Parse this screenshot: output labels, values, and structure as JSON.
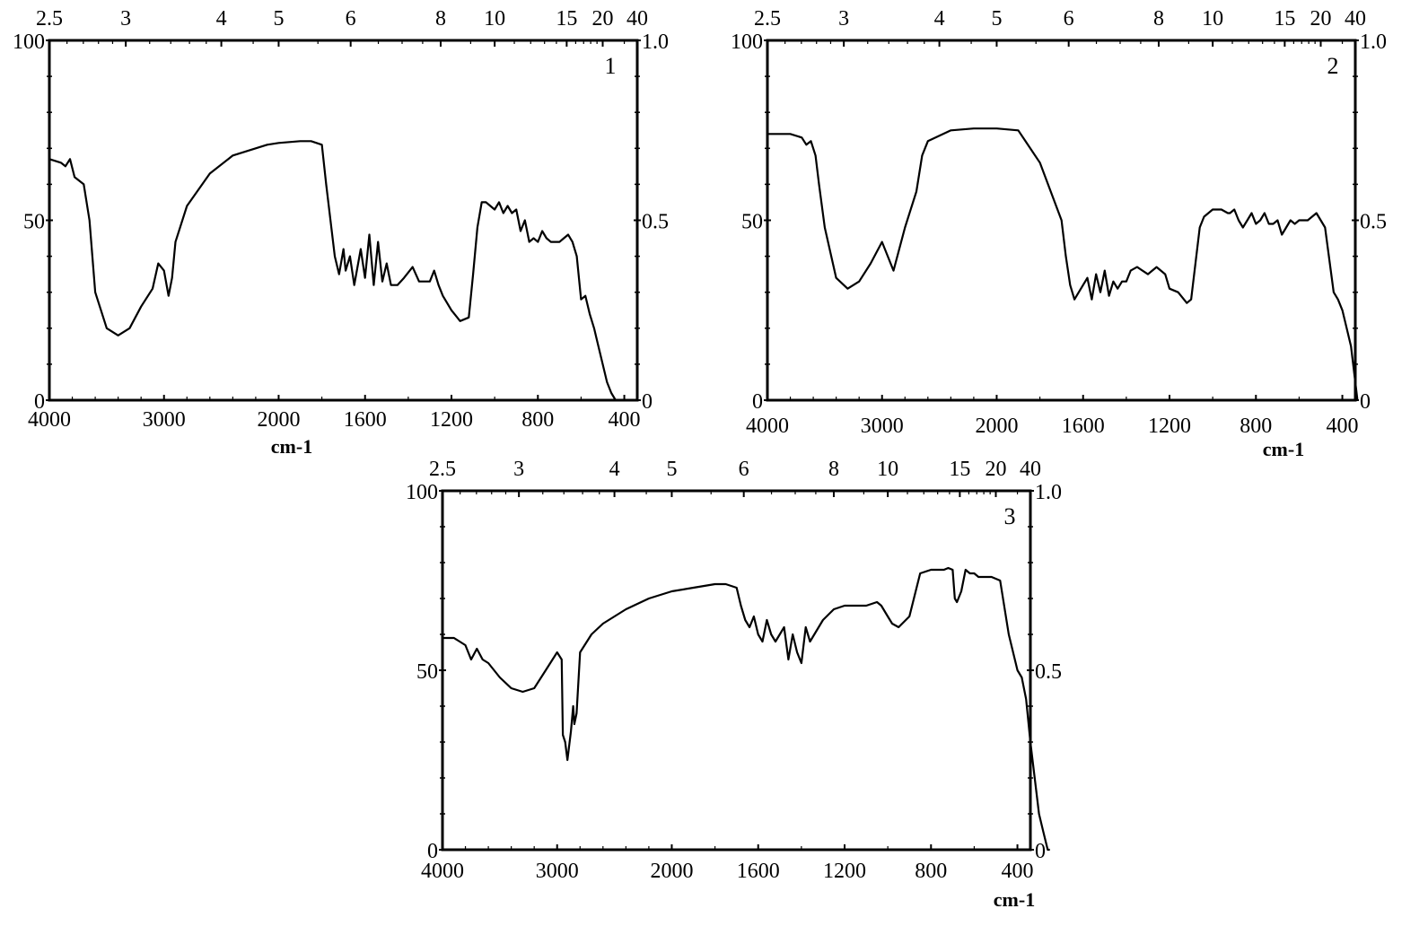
{
  "chart_data": [
    {
      "type": "line",
      "panel_label": "1",
      "xlabel": "cm-1",
      "x_ticks": [
        "4000",
        "3000",
        "2000",
        "1600",
        "1200",
        "800",
        "400"
      ],
      "x_tick_values": [
        4000,
        3000,
        2000,
        1600,
        1200,
        800,
        400
      ],
      "top_ticks": [
        "2.5",
        "3",
        "4",
        "5",
        "6",
        "8",
        "10",
        "15",
        "20",
        "40"
      ],
      "top_tick_values": [
        2.5,
        3,
        4,
        5,
        6,
        8,
        10,
        15,
        20,
        40
      ],
      "y_left_ticks": [
        "0",
        "50",
        "100"
      ],
      "y_left_tick_values": [
        0,
        50,
        100
      ],
      "y_right_ticks": [
        "0",
        "0.5",
        "1.0"
      ],
      "y_right_tick_values": [
        0,
        0.5,
        1.0
      ],
      "ylim": [
        0,
        100
      ],
      "grid": false,
      "series": [
        {
          "x": [
            4000,
            3900,
            3860,
            3820,
            3780,
            3700,
            3650,
            3600,
            3500,
            3400,
            3300,
            3200,
            3100,
            3050,
            3000,
            2960,
            2930,
            2900,
            2800,
            2600,
            2400,
            2200,
            2100,
            2000,
            1900,
            1850,
            1800,
            1780,
            1760,
            1740,
            1720,
            1700,
            1690,
            1670,
            1650,
            1620,
            1600,
            1580,
            1560,
            1540,
            1520,
            1500,
            1480,
            1450,
            1420,
            1380,
            1350,
            1300,
            1280,
            1260,
            1240,
            1200,
            1160,
            1120,
            1100,
            1080,
            1060,
            1040,
            1020,
            1000,
            980,
            960,
            940,
            920,
            900,
            880,
            860,
            840,
            820,
            800,
            780,
            760,
            740,
            720,
            700,
            680,
            660,
            640,
            620,
            600,
            580,
            560,
            540,
            520,
            500,
            480,
            460,
            440,
            430,
            420,
            410
          ],
          "y": [
            67,
            66,
            65,
            67,
            62,
            60,
            50,
            30,
            20,
            18,
            20,
            26,
            31,
            38,
            36,
            29,
            34,
            44,
            54,
            63,
            68,
            70,
            71,
            71.5,
            72,
            72,
            71,
            60,
            50,
            40,
            35,
            42,
            36,
            40,
            32,
            42,
            34,
            46,
            32,
            44,
            33,
            38,
            32,
            32,
            34,
            37,
            33,
            33,
            36,
            32,
            29,
            25,
            22,
            23,
            35,
            48,
            55,
            55,
            54,
            53,
            55,
            52,
            54,
            52,
            53,
            47,
            50,
            44,
            45,
            44,
            47,
            45,
            44,
            44,
            44,
            45,
            46,
            44,
            40,
            28,
            29,
            24,
            20,
            15,
            10,
            5,
            2,
            0,
            0,
            0,
            0
          ]
        }
      ]
    },
    {
      "type": "line",
      "panel_label": "2",
      "xlabel": "cm-1",
      "x_ticks": [
        "4000",
        "3000",
        "2000",
        "1600",
        "1200",
        "800",
        "400"
      ],
      "x_tick_values": [
        4000,
        3000,
        2000,
        1600,
        1200,
        800,
        400
      ],
      "top_ticks": [
        "2.5",
        "3",
        "4",
        "5",
        "6",
        "8",
        "10",
        "15",
        "20",
        "40"
      ],
      "top_tick_values": [
        2.5,
        3,
        4,
        5,
        6,
        8,
        10,
        15,
        20,
        40
      ],
      "y_left_ticks": [
        "0",
        "50",
        "100"
      ],
      "y_left_tick_values": [
        0,
        50,
        100
      ],
      "y_right_ticks": [
        "0",
        "0.5",
        "1.0"
      ],
      "y_right_tick_values": [
        0,
        0.5,
        1.0
      ],
      "ylim": [
        0,
        100
      ],
      "grid": false,
      "series": [
        {
          "x": [
            4000,
            3800,
            3700,
            3660,
            3620,
            3580,
            3550,
            3500,
            3400,
            3300,
            3200,
            3100,
            3000,
            2900,
            2800,
            2700,
            2650,
            2600,
            2400,
            2200,
            2000,
            1900,
            1800,
            1700,
            1680,
            1660,
            1640,
            1620,
            1600,
            1580,
            1560,
            1540,
            1520,
            1500,
            1480,
            1460,
            1440,
            1420,
            1400,
            1380,
            1350,
            1300,
            1260,
            1220,
            1200,
            1160,
            1120,
            1100,
            1080,
            1060,
            1040,
            1000,
            960,
            930,
            920,
            900,
            880,
            860,
            840,
            820,
            800,
            780,
            760,
            740,
            720,
            700,
            680,
            660,
            640,
            620,
            600,
            560,
            520,
            480,
            440,
            420,
            400,
            380,
            360,
            340,
            330
          ],
          "y": [
            74,
            74,
            73,
            71,
            72,
            68,
            60,
            48,
            34,
            31,
            33,
            38,
            44,
            36,
            48,
            58,
            68,
            72,
            75,
            75.5,
            75.5,
            75,
            66,
            50,
            40,
            32,
            28,
            30,
            32,
            34,
            28,
            35,
            30,
            36,
            29,
            33,
            31,
            33,
            33,
            36,
            37,
            35,
            37,
            35,
            31,
            30,
            27,
            28,
            38,
            48,
            51,
            53,
            53,
            52,
            52,
            53,
            50,
            48,
            50,
            52,
            49,
            50,
            52,
            49,
            49,
            50,
            46,
            48,
            50,
            49,
            50,
            50,
            52,
            48,
            30,
            28,
            25,
            20,
            15,
            5,
            0
          ]
        }
      ]
    },
    {
      "type": "line",
      "panel_label": "3",
      "xlabel": "cm-1",
      "x_ticks": [
        "4000",
        "3000",
        "2000",
        "1600",
        "1200",
        "800",
        "400"
      ],
      "x_tick_values": [
        4000,
        3000,
        2000,
        1600,
        1200,
        800,
        400
      ],
      "top_ticks": [
        "2.5",
        "3",
        "4",
        "5",
        "6",
        "8",
        "10",
        "15",
        "20",
        "40"
      ],
      "top_tick_values": [
        2.5,
        3,
        4,
        5,
        6,
        8,
        10,
        15,
        20,
        40
      ],
      "y_left_ticks": [
        "0",
        "50",
        "100"
      ],
      "y_left_tick_values": [
        0,
        50,
        100
      ],
      "y_right_ticks": [
        "0",
        "0.5",
        "1.0"
      ],
      "y_right_tick_values": [
        0,
        0.5,
        1.0
      ],
      "ylim": [
        0,
        100
      ],
      "grid": false,
      "series": [
        {
          "x": [
            4000,
            3900,
            3800,
            3750,
            3700,
            3650,
            3600,
            3500,
            3400,
            3300,
            3200,
            3100,
            3000,
            2960,
            2950,
            2930,
            2910,
            2880,
            2860,
            2850,
            2830,
            2800,
            2700,
            2600,
            2500,
            2400,
            2200,
            2000,
            1900,
            1800,
            1750,
            1700,
            1680,
            1660,
            1640,
            1620,
            1600,
            1580,
            1560,
            1540,
            1520,
            1500,
            1480,
            1460,
            1440,
            1420,
            1400,
            1380,
            1360,
            1340,
            1300,
            1250,
            1200,
            1150,
            1100,
            1050,
            1030,
            1000,
            980,
            950,
            900,
            850,
            800,
            760,
            740,
            720,
            700,
            690,
            680,
            660,
            640,
            620,
            600,
            580,
            560,
            520,
            480,
            440,
            400,
            380,
            360,
            340,
            320,
            300,
            280,
            260,
            250
          ],
          "y": [
            59,
            59,
            57,
            53,
            56,
            53,
            52,
            48,
            45,
            44,
            45,
            50,
            55,
            53,
            32,
            30,
            25,
            33,
            40,
            35,
            38,
            55,
            60,
            63,
            65,
            67,
            70,
            72,
            73,
            74,
            74,
            73,
            68,
            64,
            62,
            65,
            60,
            58,
            64,
            60,
            58,
            60,
            62,
            53,
            60,
            55,
            52,
            62,
            58,
            60,
            64,
            67,
            68,
            68,
            68,
            69,
            68,
            65,
            63,
            62,
            65,
            77,
            78,
            78,
            78,
            78.5,
            78,
            70,
            69,
            72,
            78,
            77,
            77,
            76,
            76,
            76,
            75,
            60,
            50,
            48,
            42,
            30,
            20,
            10,
            5,
            0,
            0
          ]
        }
      ]
    }
  ]
}
